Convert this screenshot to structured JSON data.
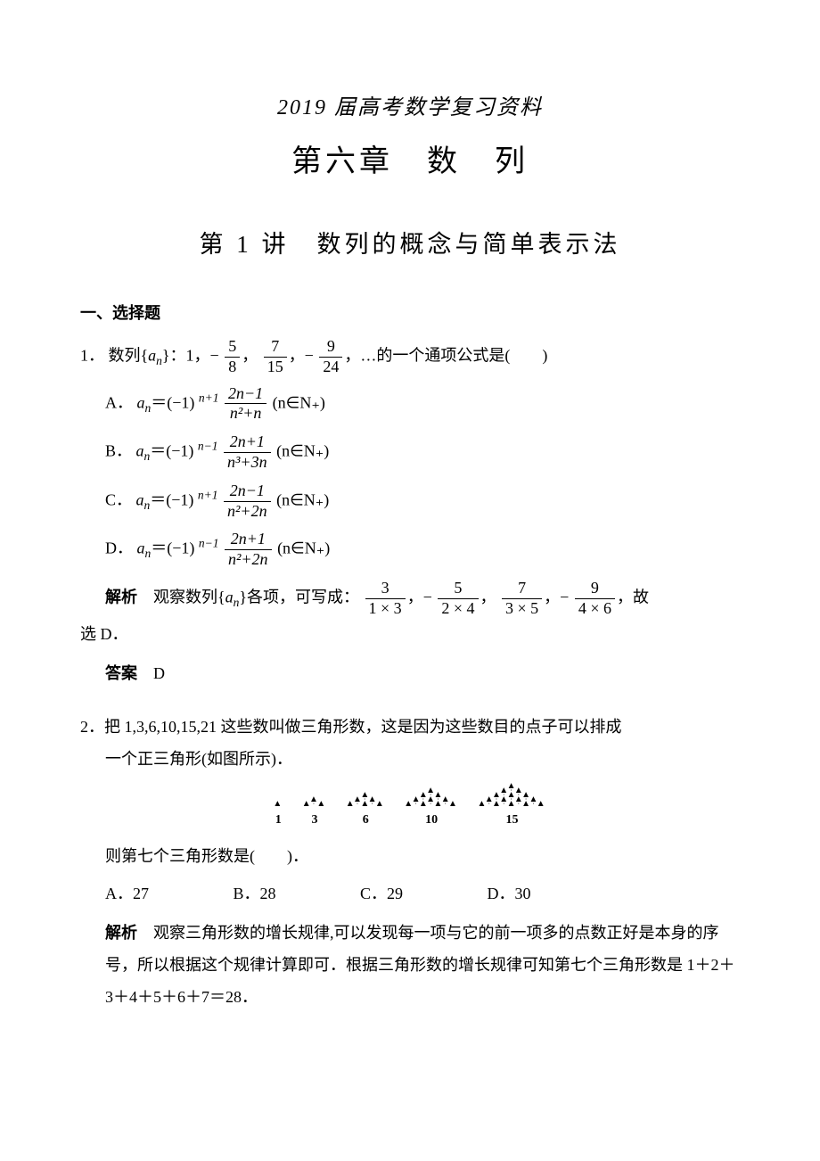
{
  "doc_title": "2019 届高考数学复习资料",
  "chapter_title": "第六章　数　列",
  "lecture_title": "第 1 讲　数列的概念与简单表示法",
  "section1": "一、选择题",
  "q1": {
    "num": "1．",
    "stem_lead": "数列{",
    "stem_var": "a",
    "stem_sub": "n",
    "stem_after": "}：1，−",
    "f1n": "5",
    "f1d": "8",
    "comma1": "，",
    "f2n": "7",
    "f2d": "15",
    "comma2": "，−",
    "f3n": "9",
    "f3d": "24",
    "tail": "，…的一个通项公式是(　　)",
    "A": {
      "label": "A．",
      "exp": "n+1",
      "num": "2n−1",
      "den": "n²+n",
      "tail": "(n∈N₊)"
    },
    "B": {
      "label": "B．",
      "exp": "n−1",
      "num": "2n+1",
      "den": "n³+3n",
      "tail": "(n∈N₊)"
    },
    "C": {
      "label": "C．",
      "exp": "n+1",
      "num": "2n−1",
      "den": "n²+2n",
      "tail": "(n∈N₊)"
    },
    "D": {
      "label": "D．",
      "exp": "n−1",
      "num": "2n+1",
      "den": "n²+2n",
      "tail": "(n∈N₊)"
    },
    "analysis_label": "解析",
    "analysis_lead": "　观察数列{",
    "analysis_after": "}各项，可写成：",
    "af1n": "3",
    "af1d": "1 × 3",
    "acomma1": "，−",
    "af2n": "5",
    "af2d": "2 × 4",
    "acomma2": "，",
    "af3n": "7",
    "af3d": "3 × 5",
    "acomma3": "，−",
    "af4n": "9",
    "af4d": "4 × 6",
    "analysis_tail": "，故",
    "analysis_line2": "选 D．",
    "answer_label": "答案",
    "answer_val": "　D"
  },
  "q2": {
    "num": "2．",
    "stem_l1": "把 1,3,6,10,15,21 这些数叫做三角形数，这是因为这些数目的点子可以排成",
    "stem_l2": "一个正三角形(如图所示)．",
    "tri_labels": [
      "1",
      "3",
      "6",
      "10",
      "15"
    ],
    "stem_q": "则第七个三角形数是(　　)．",
    "A": "A．27",
    "B": "B．28",
    "C": "C．29",
    "D": "D．30",
    "analysis_label": "解析",
    "analysis_body": "　观察三角形数的增长规律,可以发现每一项与它的前一项多的点数正好是本身的序号，所以根据这个规律计算即可．根据三角形数的增长规律可知第七个三角形数是 1＋2＋3＋4＋5＋6＋7＝28．"
  }
}
